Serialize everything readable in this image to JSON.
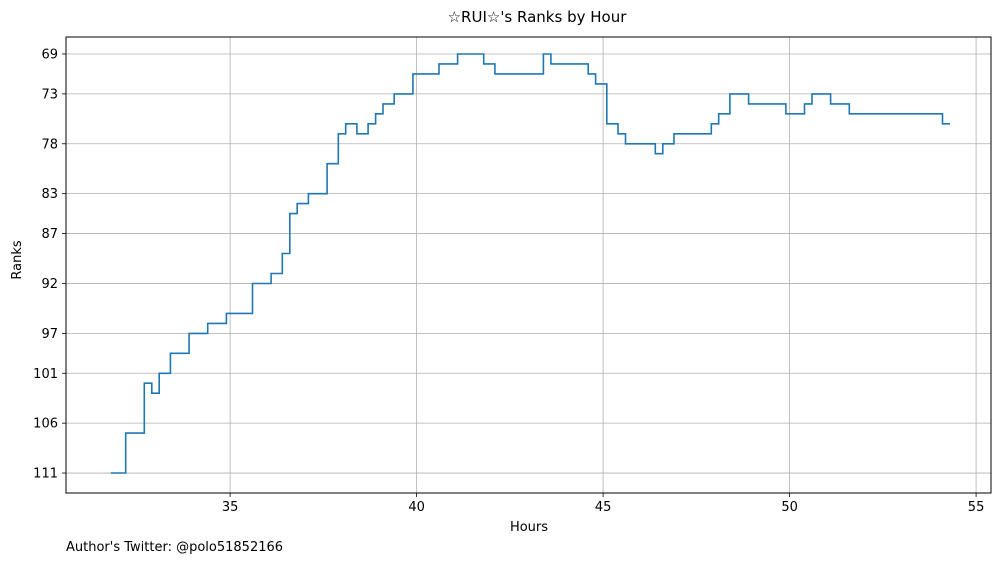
{
  "chart_data": {
    "type": "line",
    "step": true,
    "title": "☆RUI☆'s Ranks by Hour",
    "xlabel": "Hours",
    "ylabel": "Ranks",
    "footer": "Author's Twitter: @polo51852166",
    "xlim": [
      30.6,
      55.4
    ],
    "ylim": [
      113.0,
      67.3
    ],
    "xticks": [
      35,
      40,
      45,
      50,
      55
    ],
    "ytick_labels": [
      "69",
      "73",
      "78",
      "83",
      "87",
      "92",
      "97",
      "101",
      "106",
      "111"
    ],
    "grid": true,
    "line_color": "#1f77b4",
    "series": [
      {
        "x": [
          31.8,
          32.2,
          32.7,
          32.9,
          33.1,
          33.4,
          33.9,
          34.4,
          34.9,
          35.6,
          36.1,
          36.4,
          36.6,
          36.8,
          37.1,
          37.6,
          37.9,
          38.1,
          38.4,
          38.7,
          38.9,
          39.1,
          39.4,
          39.9,
          40.6,
          41.1,
          41.8,
          42.1,
          43.4,
          43.6,
          44.6,
          44.8,
          45.1,
          45.4,
          45.6,
          46.4,
          46.6,
          46.9,
          47.9,
          48.1,
          48.4,
          48.9,
          49.9,
          50.4,
          50.6,
          51.1,
          51.6,
          54.1,
          54.3
        ],
        "y": [
          111,
          107,
          102,
          103,
          101,
          99,
          97,
          96,
          95,
          92,
          91,
          89,
          85,
          84,
          83,
          80,
          77,
          76,
          77,
          76,
          75,
          74,
          73,
          71,
          70,
          69,
          70,
          71,
          69,
          70,
          71,
          72,
          76,
          77,
          78,
          79,
          78,
          77,
          76,
          75,
          73,
          74,
          75,
          74,
          73,
          74,
          75,
          76,
          76
        ]
      }
    ]
  }
}
